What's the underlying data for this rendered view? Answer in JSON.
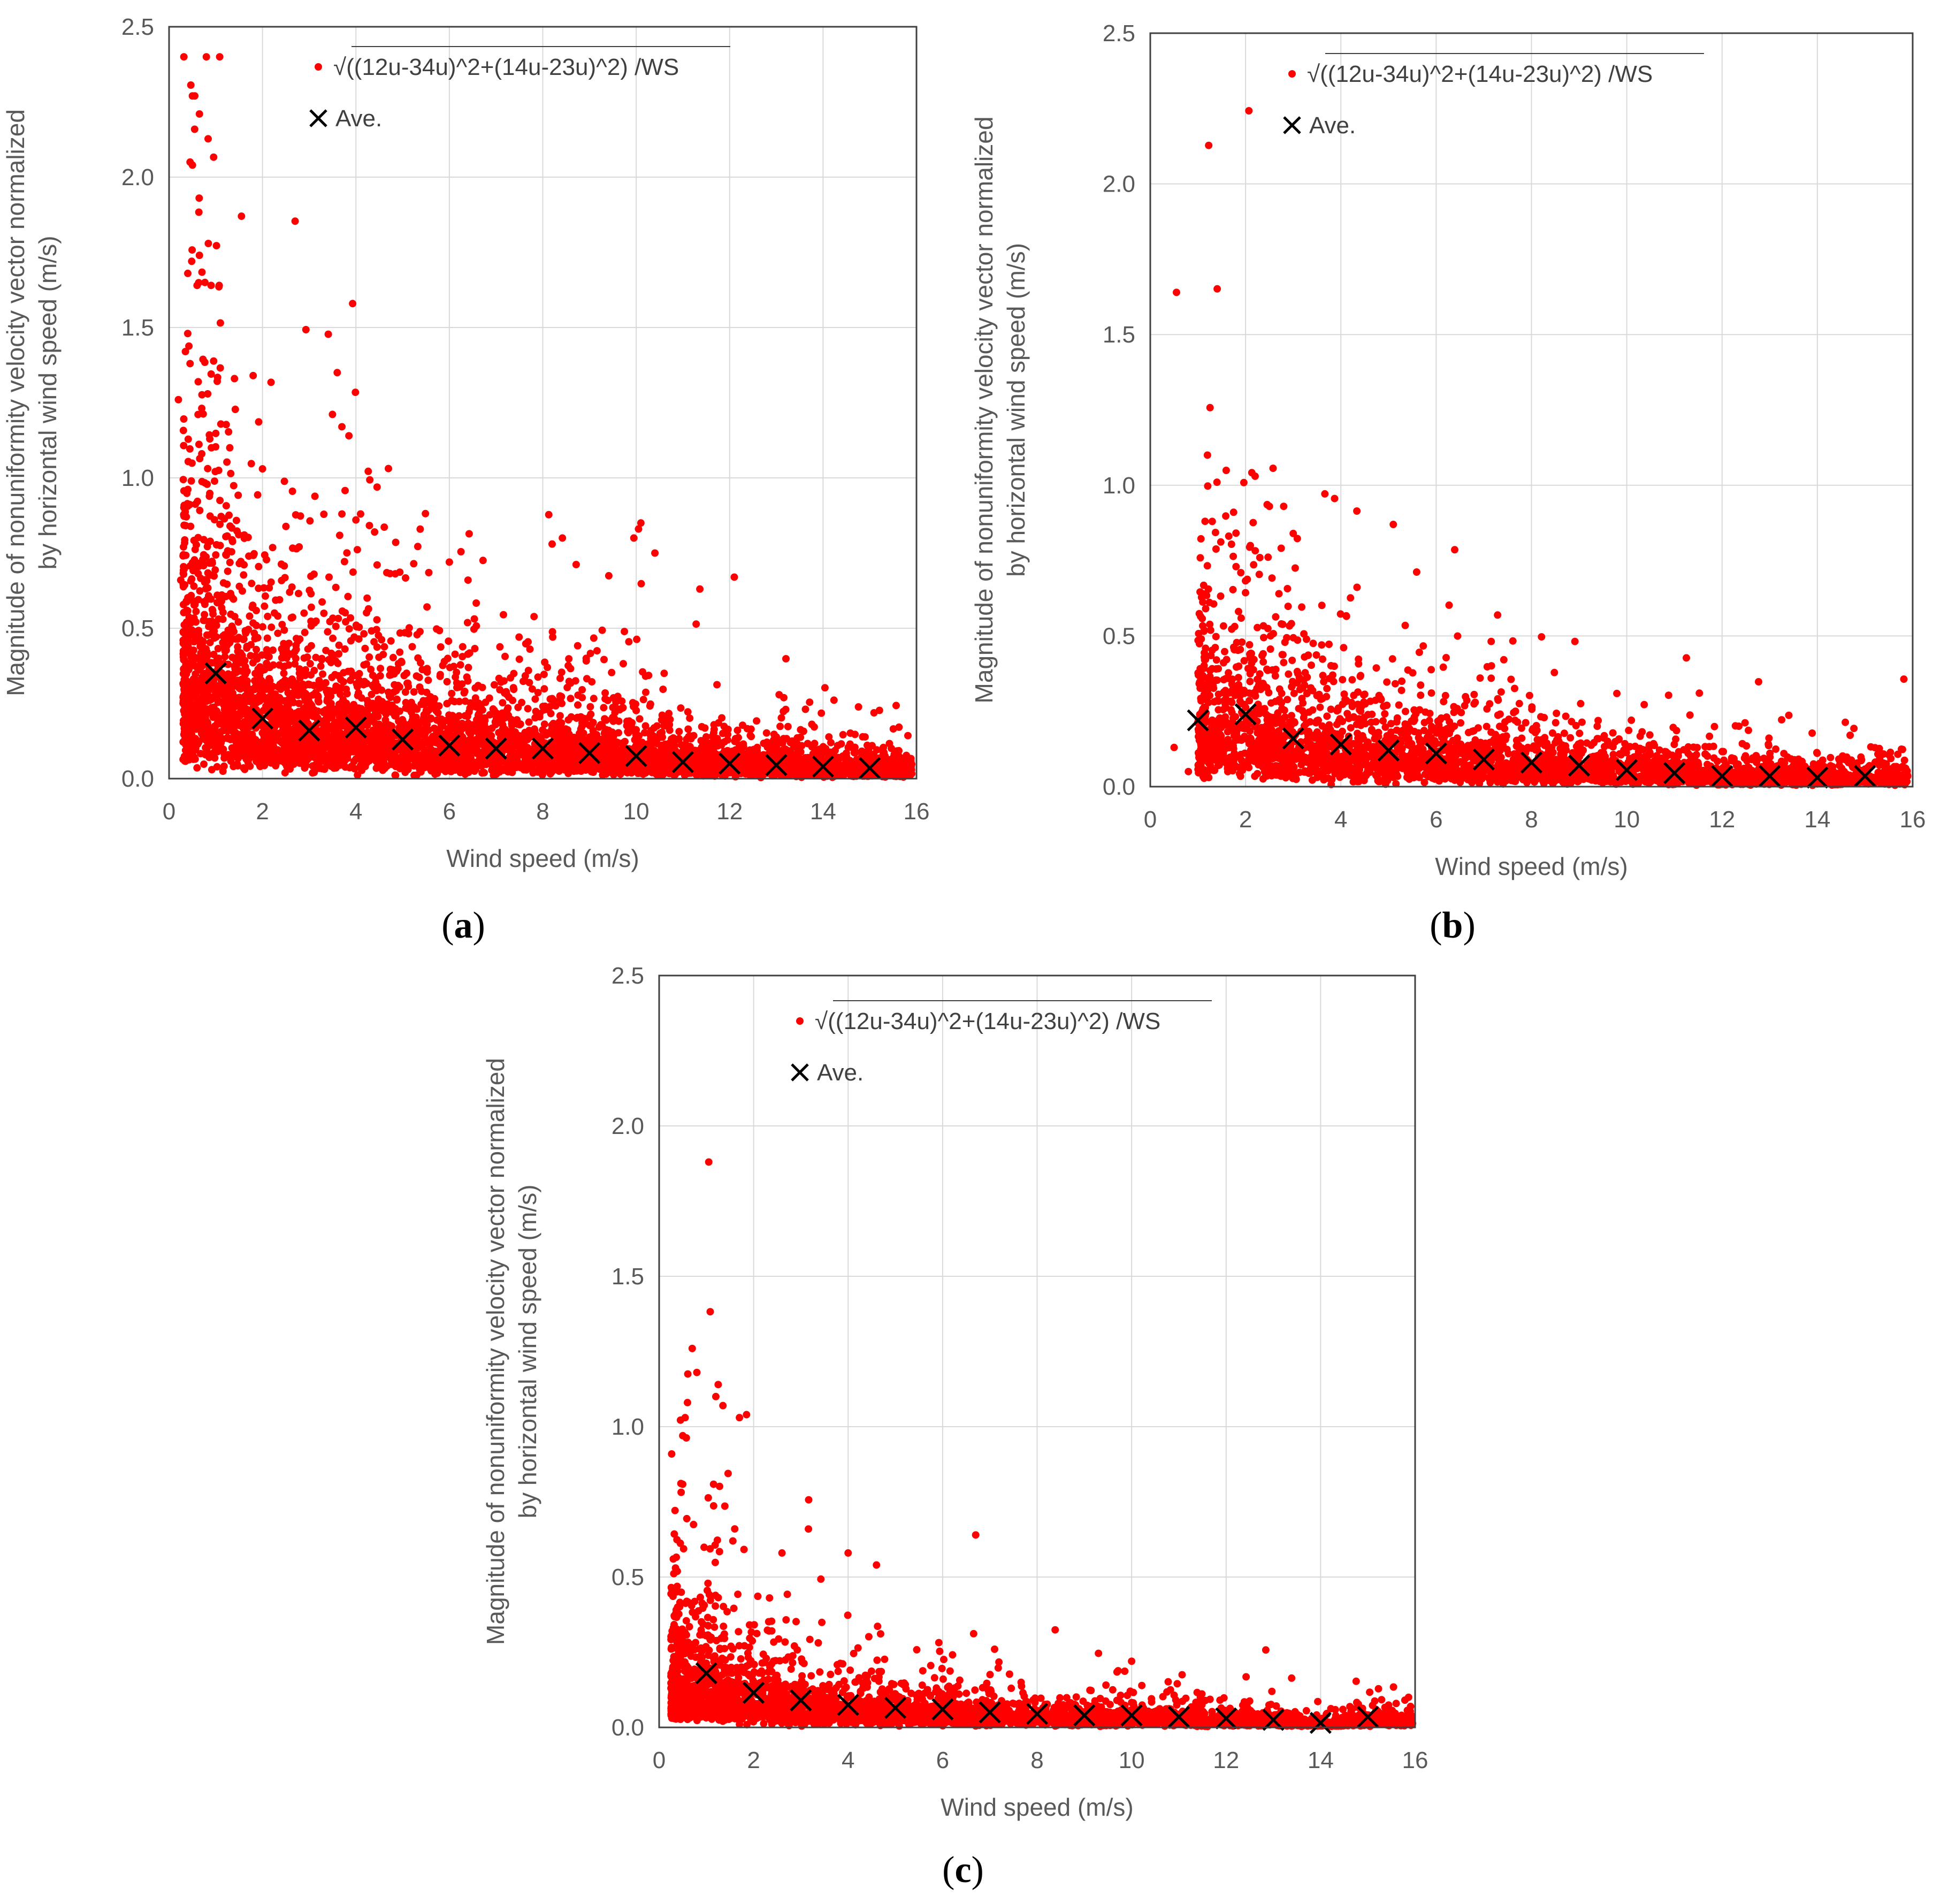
{
  "series_colors": {
    "scatter": "#ff0000",
    "average": "#000000",
    "grid": "#d9d9d9",
    "frame": "#404040"
  },
  "legend": {
    "scatter_label": "√((12u-34u)^2+(14u-23u)^2) /WS",
    "average_label": "Ave."
  },
  "chart_data": [
    {
      "type": "scatter",
      "panel": "a",
      "panel_label": "a",
      "xlabel": "Wind speed (m/s)",
      "ylabel_line1": "Magnitude of nonuniformity velocity vector normalized",
      "ylabel_line2": "by horizontal wind speed (m/s)",
      "xlim": [
        0,
        16
      ],
      "ylim": [
        0,
        2.5
      ],
      "xticks": [
        "0",
        "2",
        "4",
        "6",
        "8",
        "10",
        "12",
        "14",
        "16"
      ],
      "yticks": [
        "0.0",
        "0.5",
        "1.0",
        "1.5",
        "2.0",
        "2.5"
      ],
      "grid": true,
      "legend_position": "top-left",
      "series": [
        {
          "name": "√((12u-34u)^2+(14u-23u)^2) /WS",
          "marker": "dot",
          "color": "#ff0000"
        },
        {
          "name": "Ave.",
          "marker": "x",
          "color": "#000000",
          "x": [
            1,
            2,
            3,
            4,
            5,
            6,
            7,
            8,
            9,
            10,
            11,
            12,
            13,
            14,
            15
          ],
          "y": [
            0.35,
            0.2,
            0.16,
            0.17,
            0.13,
            0.11,
            0.1,
            0.1,
            0.085,
            0.075,
            0.055,
            0.05,
            0.045,
            0.04,
            0.035
          ]
        }
      ],
      "outliers": [
        [
          0.5,
          2.27
        ],
        [
          0.55,
          2.27
        ],
        [
          0.65,
          2.21
        ],
        [
          0.45,
          2.05
        ],
        [
          0.5,
          2.04
        ],
        [
          1.55,
          1.87
        ],
        [
          0.65,
          1.74
        ],
        [
          0.6,
          1.64
        ],
        [
          0.9,
          1.64
        ],
        [
          0.4,
          1.48
        ],
        [
          0.35,
          1.42
        ],
        [
          0.45,
          1.38
        ],
        [
          1.8,
          1.34
        ],
        [
          1.4,
          1.33
        ],
        [
          0.2,
          1.26
        ],
        [
          3.6,
          1.35
        ],
        [
          3.7,
          1.17
        ],
        [
          3.85,
          1.14
        ],
        [
          0.7,
          1.08
        ],
        [
          1.3,
          1.1
        ],
        [
          2.0,
          1.03
        ],
        [
          3.7,
          0.88
        ],
        [
          4.1,
          0.88
        ],
        [
          4.0,
          0.86
        ],
        [
          4.4,
          0.82
        ],
        [
          8.2,
          0.78
        ],
        [
          10.1,
          0.85
        ],
        [
          10.05,
          0.83
        ],
        [
          9.95,
          0.8
        ],
        [
          10.4,
          0.75
        ],
        [
          12.1,
          0.67
        ],
        [
          6.4,
          0.66
        ],
        [
          6.0,
          0.72
        ],
        [
          0.25,
          0.66
        ]
      ]
    },
    {
      "type": "scatter",
      "panel": "b",
      "panel_label": "b",
      "xlabel": "Wind speed (m/s)",
      "ylabel_line1": "Magnitude of nonuniformity velocity vector normalized",
      "ylabel_line2": "by horizontal wind speed (m/s)",
      "xlim": [
        0,
        16
      ],
      "ylim": [
        0,
        2.5
      ],
      "xticks": [
        "0",
        "2",
        "4",
        "6",
        "8",
        "10",
        "12",
        "14",
        "16"
      ],
      "yticks": [
        "0.0",
        "0.5",
        "1.0",
        "1.5",
        "2.0",
        "2.5"
      ],
      "grid": true,
      "legend_position": "top-center",
      "series": [
        {
          "name": "√((12u-34u)^2+(14u-23u)^2) /WS",
          "marker": "dot",
          "color": "#ff0000"
        },
        {
          "name": "Ave.",
          "marker": "x",
          "color": "#000000",
          "x": [
            1,
            2,
            3,
            4,
            5,
            6,
            7,
            8,
            9,
            10,
            11,
            12,
            13,
            14,
            15
          ],
          "y": [
            0.22,
            0.24,
            0.16,
            0.14,
            0.12,
            0.11,
            0.09,
            0.08,
            0.07,
            0.055,
            0.045,
            0.035,
            0.035,
            0.03,
            0.035
          ]
        }
      ],
      "outliers": [
        [
          0.55,
          1.64
        ],
        [
          1.2,
          1.1
        ],
        [
          1.4,
          1.01
        ],
        [
          2.2,
          1.03
        ],
        [
          1.3,
          0.88
        ],
        [
          2.5,
          0.93
        ],
        [
          2.8,
          0.93
        ],
        [
          3.0,
          0.84
        ],
        [
          5.1,
          0.87
        ],
        [
          1.8,
          0.73
        ],
        [
          1.9,
          0.71
        ],
        [
          2.7,
          0.64
        ],
        [
          0.5,
          0.13
        ],
        [
          0.8,
          0.05
        ],
        [
          2.1,
          0.8
        ],
        [
          2.3,
          0.76
        ]
      ]
    },
    {
      "type": "scatter",
      "panel": "c",
      "panel_label": "c",
      "xlabel": "Wind speed (m/s)",
      "ylabel_line1": "Magnitude of nonuniformity velocity vector normalized",
      "ylabel_line2": "by horizontal wind speed (m/s)",
      "xlim": [
        0,
        16
      ],
      "ylim": [
        0,
        2.5
      ],
      "xticks": [
        "0",
        "2",
        "4",
        "6",
        "8",
        "10",
        "12",
        "14",
        "16"
      ],
      "yticks": [
        "0.0",
        "0.5",
        "1.0",
        "1.5",
        "2.0",
        "2.5"
      ],
      "grid": true,
      "legend_position": "top-center",
      "series": [
        {
          "name": "√((12u-34u)^2+(14u-23u)^2) /WS",
          "marker": "dot",
          "color": "#ff0000"
        },
        {
          "name": "Ave.",
          "marker": "x",
          "color": "#000000",
          "x": [
            1,
            2,
            3,
            4,
            5,
            6,
            7,
            8,
            9,
            10,
            11,
            12,
            13,
            14,
            15
          ],
          "y": [
            0.18,
            0.115,
            0.09,
            0.075,
            0.065,
            0.06,
            0.05,
            0.045,
            0.04,
            0.04,
            0.035,
            0.03,
            0.025,
            0.015,
            0.035
          ]
        }
      ],
      "outliers": [
        [
          1.05,
          1.88
        ],
        [
          0.7,
          1.26
        ],
        [
          1.25,
          1.14
        ],
        [
          1.2,
          1.1
        ],
        [
          1.35,
          1.07
        ],
        [
          0.6,
          1.08
        ],
        [
          1.85,
          1.04
        ],
        [
          1.7,
          1.03
        ],
        [
          0.55,
          1.03
        ],
        [
          0.5,
          0.97
        ],
        [
          6.7,
          0.64
        ],
        [
          1.6,
          0.66
        ],
        [
          4.6,
          0.54
        ],
        [
          4.0,
          0.58
        ],
        [
          2.6,
          0.58
        ],
        [
          0.3,
          0.56
        ],
        [
          7.1,
          0.26
        ],
        [
          10.0,
          0.22
        ]
      ]
    }
  ]
}
